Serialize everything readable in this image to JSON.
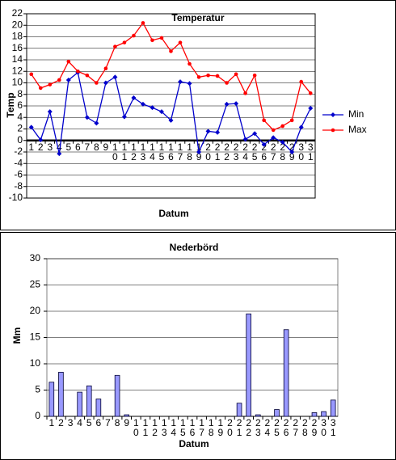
{
  "chart_data": [
    {
      "type": "line",
      "title": "Temperatur",
      "ylabel": "Temp",
      "xlabel": "Datum",
      "categories": [
        "1",
        "2",
        "3",
        "4",
        "5",
        "6",
        "7",
        "8",
        "9",
        "10",
        "11",
        "12",
        "13",
        "14",
        "15",
        "16",
        "17",
        "18",
        "19",
        "20",
        "21",
        "22",
        "23",
        "24",
        "25",
        "26",
        "27",
        "28",
        "29",
        "30",
        "31"
      ],
      "series": [
        {
          "name": "Min",
          "color": "#0000cc",
          "values": [
            2.3,
            0.1,
            5,
            -2.3,
            10.5,
            11.8,
            4,
            3,
            10,
            11,
            4.1,
            7.4,
            6.3,
            5.7,
            5,
            3.5,
            10.2,
            9.9,
            -2,
            1.6,
            1.4,
            6.3,
            6.4,
            0.2,
            1.2,
            -0.7,
            0.5,
            -0.3,
            -2,
            2.3,
            5.6
          ]
        },
        {
          "name": "Max",
          "color": "#ff0000",
          "values": [
            11.5,
            9.1,
            9.7,
            10.5,
            13.7,
            12,
            11.3,
            10,
            12.5,
            16.3,
            17,
            18.2,
            20.4,
            17.4,
            17.8,
            15.5,
            17,
            13.3,
            11,
            11.3,
            11.2,
            10,
            11.5,
            8.2,
            11.3,
            3.5,
            1.8,
            2.5,
            3.5,
            10.2,
            8.2
          ]
        }
      ],
      "ylim": [
        -10,
        22
      ],
      "yticks": [
        -10,
        -8,
        -6,
        -4,
        -2,
        0,
        2,
        4,
        6,
        8,
        10,
        12,
        14,
        16,
        18,
        20,
        22
      ],
      "grid": true,
      "legend": "right"
    },
    {
      "type": "bar",
      "title": "Nederbörd",
      "ylabel": "Mm",
      "xlabel": "Datum",
      "categories": [
        "1",
        "2",
        "3",
        "4",
        "5",
        "6",
        "7",
        "8",
        "9",
        "10",
        "11",
        "12",
        "13",
        "14",
        "15",
        "16",
        "17",
        "18",
        "19",
        "20",
        "21",
        "22",
        "23",
        "24",
        "25",
        "26",
        "27",
        "28",
        "29",
        "30",
        "31"
      ],
      "values": [
        6.5,
        8.4,
        0,
        4.6,
        5.8,
        3.3,
        0,
        7.8,
        0.3,
        0,
        0,
        0,
        0,
        0,
        0,
        0,
        0,
        0,
        0,
        0,
        2.5,
        19.5,
        0.3,
        0,
        1.3,
        16.5,
        0,
        0,
        0.7,
        0.9,
        3.1
      ],
      "color": "#9999ff",
      "ylim": [
        0,
        30
      ],
      "yticks": [
        0,
        5,
        10,
        15,
        20,
        25,
        30
      ],
      "grid": true
    }
  ]
}
